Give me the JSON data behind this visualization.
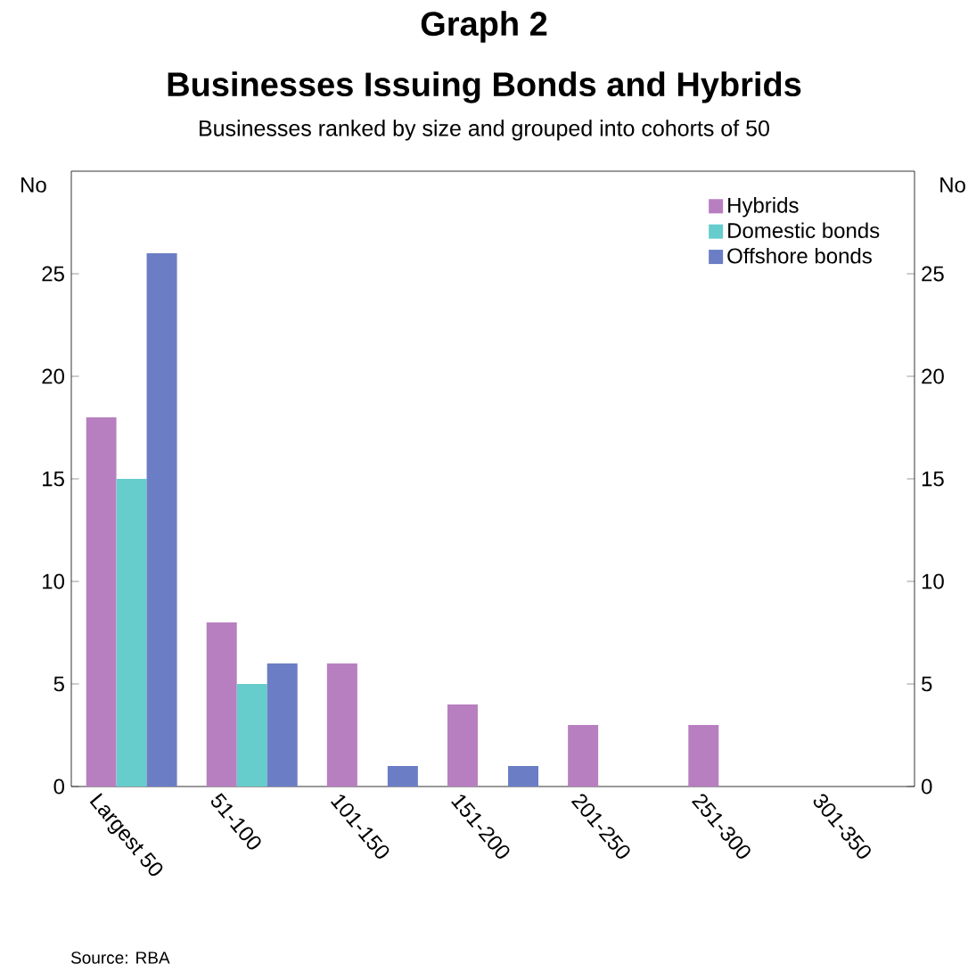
{
  "chart_data": {
    "type": "bar",
    "title": "Businesses Issuing Bonds and Hybrids",
    "subtitle": "Businesses ranked by size and grouped into cohorts of 50",
    "annotations": [
      "Graph 2",
      "Source: RBA"
    ],
    "ylabel": "No",
    "y2label": "No",
    "categories": [
      "Largest 50",
      "51-100",
      "101-150",
      "151-200",
      "201-250",
      "251-300",
      "301-350"
    ],
    "series": [
      {
        "name": "Hybrids",
        "color": "#b87fc0",
        "values": [
          18,
          8,
          6,
          4,
          3,
          3,
          0
        ]
      },
      {
        "name": "Domestic bonds",
        "color": "#66cccc",
        "values": [
          15,
          5,
          0,
          0,
          0,
          0,
          0
        ]
      },
      {
        "name": "Offshore bonds",
        "color": "#6b7dc4",
        "values": [
          26,
          6,
          1,
          1,
          0,
          0,
          0
        ]
      }
    ],
    "ylim": [
      0,
      30
    ],
    "yticks": [
      0,
      5,
      10,
      15,
      20,
      25
    ],
    "y2lim": [
      0,
      30
    ],
    "y2ticks": [
      0,
      5,
      10,
      15,
      20,
      25
    ],
    "grid": false,
    "legend": "top right"
  }
}
